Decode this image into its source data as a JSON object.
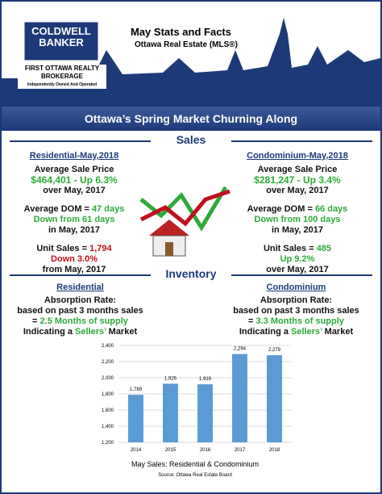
{
  "header": {
    "logo": [
      "COLDWELL",
      "BANKER"
    ],
    "brokerage": [
      "FIRST OTTAWA REALTY",
      "BROKERAGE"
    ],
    "tagline": "Independently Owned And Operated",
    "title": "May Stats and Facts",
    "subtitle": "Ottawa Real Estate (MLS®)"
  },
  "banner": "Ottawa’s Spring Market Churning Along",
  "sales": {
    "heading": "Sales",
    "residential": {
      "heading": "Residential-May,2018",
      "price_label": "Average Sale Price",
      "price_value": "$464,401 - Up 6.3%",
      "price_note": "over May, 2017",
      "dom_label": "Average DOM = ",
      "dom_value": "47 days",
      "dom_change": "Down from 61 days",
      "dom_note": "in May, 2017",
      "units_label": "Unit Sales = ",
      "units_value": "1,794",
      "units_change": "Down 3.0%",
      "units_note": "from May, 2017"
    },
    "condominium": {
      "heading": "Condominium-May,2018",
      "price_label": "Average Sale Price",
      "price_value": "$281,247 - Up 3.4%",
      "price_note": "over May, 2017",
      "dom_label": "Average DOM = ",
      "dom_value": "66 days",
      "dom_change": "Down from 100 days",
      "dom_note": "in May, 2017",
      "units_label": "Unit Sales = ",
      "units_value": "485",
      "units_change": "Up 9.2%",
      "units_note": "over May, 2017"
    }
  },
  "inventory": {
    "heading": "Inventory",
    "residential": {
      "heading": "Residential",
      "line1": "Absorption Rate:",
      "line2": "based on past 3 months sales",
      "eq": "= ",
      "supply": "2.5 Months of supply",
      "ind": "Indicating a ",
      "market": "Sellers’",
      "suffix": " Market"
    },
    "condominium": {
      "heading": "Condominium",
      "line1": "Absorption Rate:",
      "line2": "based on past 3 months sales",
      "eq": "= ",
      "supply": "3.3 Months of supply",
      "ind": "Indicating a ",
      "market": "Sellers’",
      "suffix": " Market"
    }
  },
  "chart_data": {
    "type": "bar",
    "title": "May Sales: Residential & Condominium",
    "source": "Source: Ottawa Real Estate Board",
    "categories": [
      "2014",
      "2015",
      "2016",
      "2017",
      "2018"
    ],
    "values": [
      1789,
      1926,
      1919,
      2294,
      2279
    ],
    "value_labels": [
      "1,789",
      "1,926",
      "1,919",
      "2,294",
      "2,279"
    ],
    "color": "#5b9bd5",
    "ylim": [
      1200,
      2400
    ],
    "yticks": [
      {
        "value": 1200,
        "label": "1,200"
      },
      {
        "value": 1400,
        "label": "1,400"
      },
      {
        "value": 1600,
        "label": "1,600"
      },
      {
        "value": 1800,
        "label": "1,800"
      },
      {
        "value": 2000,
        "label": "2,000"
      },
      {
        "value": 2200,
        "label": "2,200"
      },
      {
        "value": 2400,
        "label": "2,400"
      }
    ],
    "grid": true
  }
}
